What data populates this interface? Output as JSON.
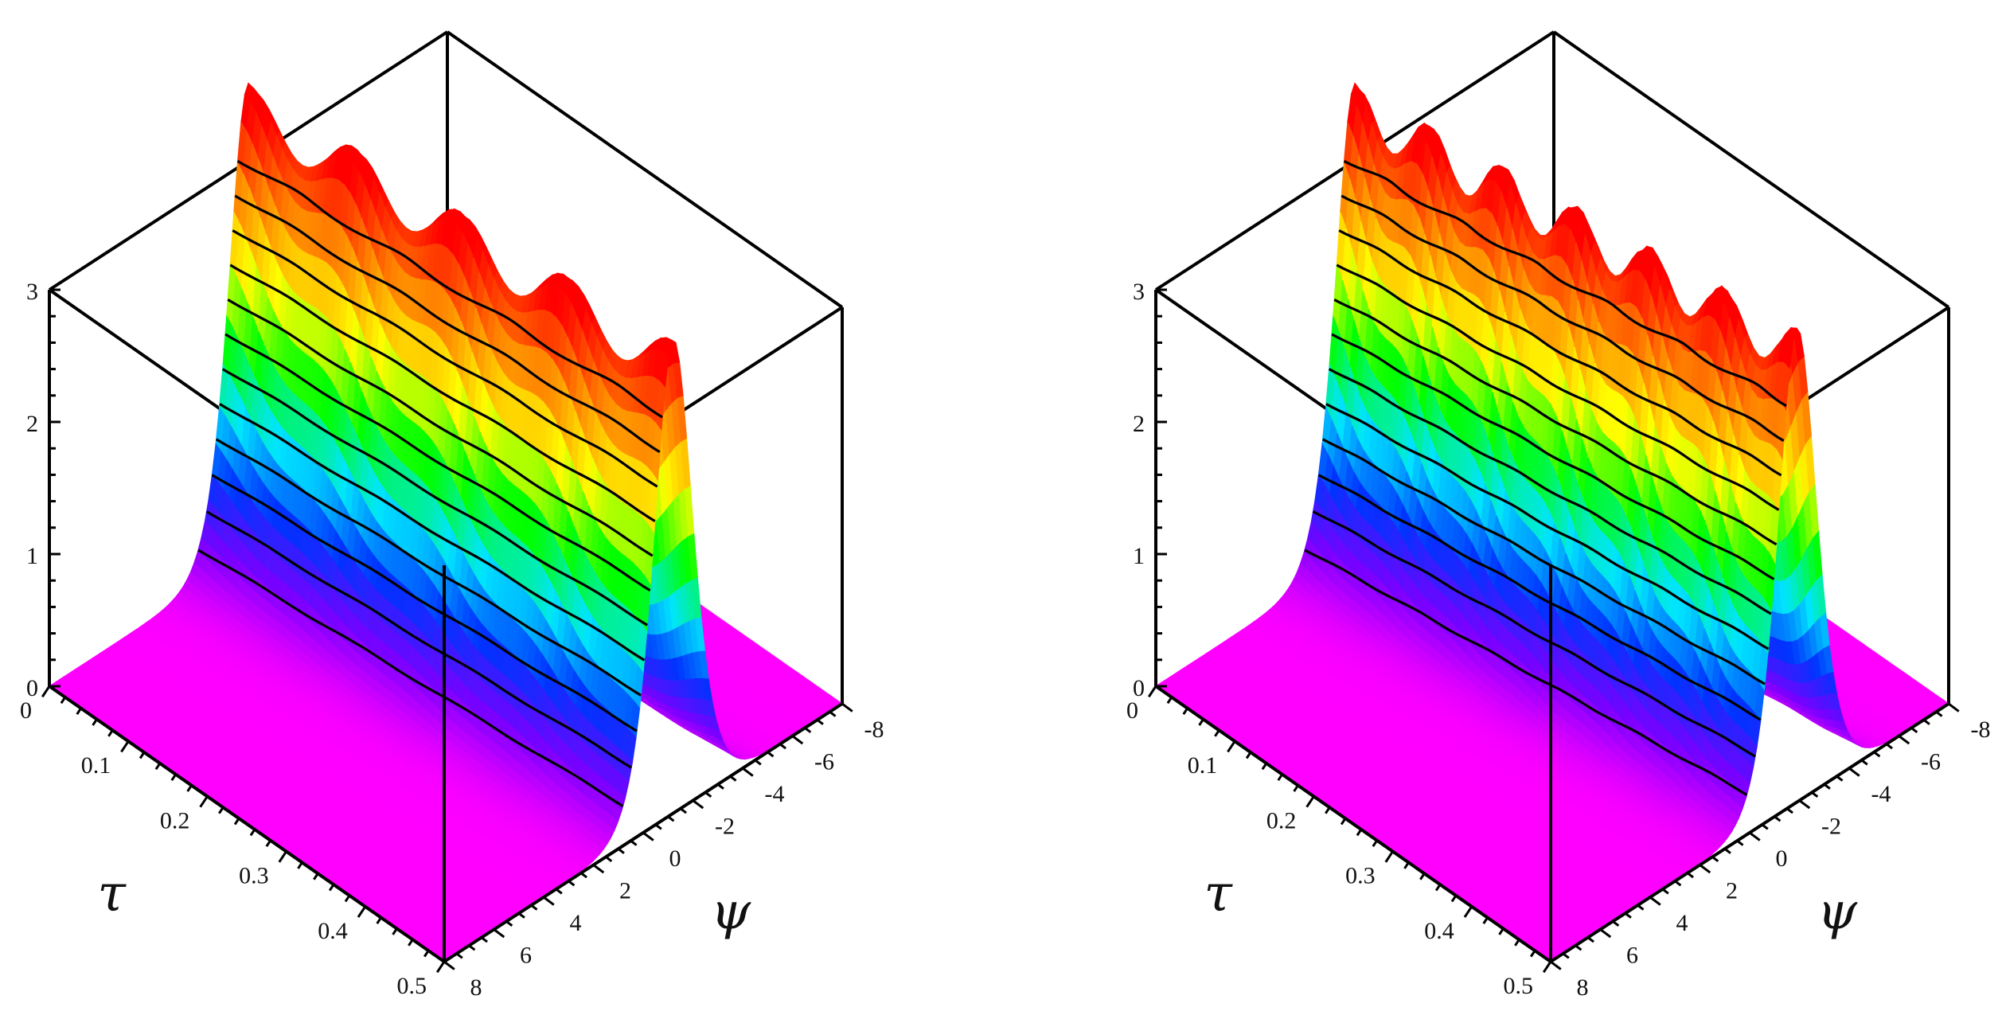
{
  "chart_data": [
    {
      "type": "surface",
      "title": "",
      "xlabel": "τ",
      "ylabel": "ψ",
      "zlabel": "",
      "xlim": [
        0,
        0.5
      ],
      "ylim": [
        -8,
        8
      ],
      "zlim": [
        0,
        3
      ],
      "x_ticks": [
        "0",
        "0.1",
        "0.2",
        "0.3",
        "0.4",
        "0.5"
      ],
      "y_ticks": [
        "8",
        "6",
        "4",
        "2",
        "0",
        "-2",
        "-4",
        "-6",
        "-8"
      ],
      "z_ticks": [
        "0",
        "1",
        "2",
        "3"
      ],
      "peak_center_psi": [
        0,
        -1.2
      ],
      "peak_amplitude": 3.4,
      "ripple_count": 4,
      "contour_levels": [
        0.3,
        0.55,
        0.8,
        1.05,
        1.3,
        1.55,
        1.8,
        2.05,
        2.3,
        2.55,
        2.8,
        3.05
      ],
      "colormap": [
        "#ff00ff",
        "#7a00ff",
        "#0033ff",
        "#00e5ff",
        "#00ff00",
        "#ffff00",
        "#ff8800",
        "#ff0000"
      ]
    },
    {
      "type": "surface",
      "title": "",
      "xlabel": "τ",
      "ylabel": "ψ",
      "zlabel": "",
      "xlim": [
        0,
        0.5
      ],
      "ylim": [
        -8,
        8
      ],
      "zlim": [
        0,
        3
      ],
      "x_ticks": [
        "0",
        "0.1",
        "0.2",
        "0.3",
        "0.4",
        "0.5"
      ],
      "y_ticks": [
        "8",
        "6",
        "4",
        "2",
        "0",
        "-2",
        "-4",
        "-6",
        "-8"
      ],
      "z_ticks": [
        "0",
        "1",
        "2",
        "3"
      ],
      "peak_center_psi": [
        0,
        -1.9
      ],
      "peak_amplitude": 3.4,
      "ripple_count": 6,
      "contour_levels": [
        0.3,
        0.55,
        0.8,
        1.05,
        1.3,
        1.55,
        1.8,
        2.05,
        2.3,
        2.55,
        2.8,
        3.05
      ],
      "colormap": [
        "#ff00ff",
        "#7a00ff",
        "#0033ff",
        "#00e5ff",
        "#00ff00",
        "#ffff00",
        "#ff8800",
        "#ff0000"
      ]
    }
  ]
}
